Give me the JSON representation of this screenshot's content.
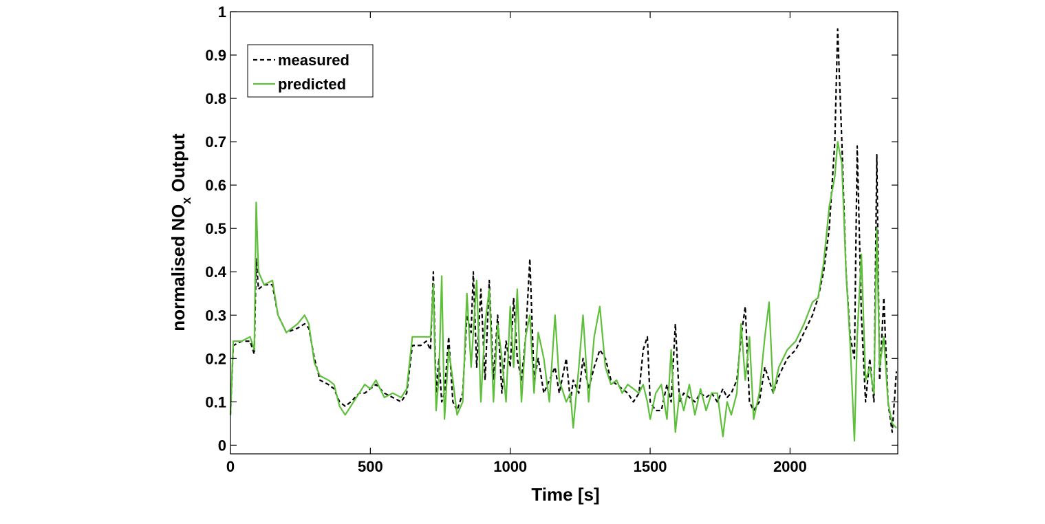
{
  "chart_data": {
    "type": "line",
    "xlabel": "Time [s]",
    "ylabel": {
      "text": "normalised NO",
      "subscript": "x",
      "suffix": " Output"
    },
    "xlim": [
      0,
      2385
    ],
    "ylim": [
      -0.02,
      1
    ],
    "xticks": [
      0,
      500,
      1000,
      1500,
      2000
    ],
    "yticks": [
      0,
      0.1,
      0.2,
      0.3,
      0.4,
      0.5,
      0.6,
      0.7,
      0.8,
      0.9,
      1
    ],
    "legend": "upper left",
    "grid": false,
    "x": [
      0,
      10,
      40,
      70,
      85,
      92,
      100,
      120,
      150,
      170,
      200,
      240,
      265,
      280,
      300,
      320,
      350,
      370,
      390,
      410,
      430,
      460,
      480,
      500,
      520,
      550,
      580,
      610,
      630,
      650,
      680,
      700,
      715,
      725,
      735,
      745,
      755,
      765,
      780,
      795,
      810,
      830,
      845,
      860,
      868,
      880,
      895,
      910,
      925,
      940,
      955,
      970,
      985,
      1000,
      1012,
      1025,
      1040,
      1055,
      1070,
      1085,
      1100,
      1120,
      1140,
      1160,
      1175,
      1200,
      1215,
      1225,
      1245,
      1260,
      1280,
      1300,
      1320,
      1340,
      1360,
      1380,
      1400,
      1420,
      1440,
      1460,
      1475,
      1490,
      1500,
      1520,
      1540,
      1560,
      1575,
      1590,
      1605,
      1620,
      1640,
      1660,
      1680,
      1700,
      1720,
      1740,
      1760,
      1775,
      1790,
      1810,
      1825,
      1840,
      1855,
      1870,
      1890,
      1910,
      1925,
      1940,
      1960,
      1990,
      2020,
      2050,
      2080,
      2100,
      2120,
      2140,
      2160,
      2170,
      2185,
      2200,
      2215,
      2230,
      2240,
      2255,
      2270,
      2285,
      2300,
      2310,
      2320,
      2335,
      2350,
      2365,
      2380
    ],
    "series": [
      {
        "name": "measured",
        "color": "#000000",
        "dash": true,
        "values": [
          0.07,
          0.23,
          0.24,
          0.24,
          0.21,
          0.43,
          0.36,
          0.37,
          0.37,
          0.3,
          0.26,
          0.27,
          0.28,
          0.27,
          0.2,
          0.15,
          0.14,
          0.13,
          0.1,
          0.09,
          0.1,
          0.12,
          0.12,
          0.13,
          0.14,
          0.12,
          0.11,
          0.1,
          0.12,
          0.23,
          0.23,
          0.24,
          0.22,
          0.4,
          0.12,
          0.2,
          0.1,
          0.12,
          0.25,
          0.1,
          0.08,
          0.12,
          0.3,
          0.26,
          0.4,
          0.18,
          0.36,
          0.15,
          0.38,
          0.15,
          0.3,
          0.12,
          0.24,
          0.18,
          0.34,
          0.2,
          0.15,
          0.25,
          0.43,
          0.15,
          0.2,
          0.12,
          0.15,
          0.18,
          0.12,
          0.2,
          0.1,
          0.15,
          0.12,
          0.2,
          0.13,
          0.18,
          0.22,
          0.2,
          0.15,
          0.14,
          0.13,
          0.12,
          0.1,
          0.12,
          0.22,
          0.25,
          0.1,
          0.08,
          0.08,
          0.14,
          0.1,
          0.28,
          0.1,
          0.12,
          0.11,
          0.1,
          0.12,
          0.11,
          0.12,
          0.1,
          0.13,
          0.11,
          0.12,
          0.15,
          0.25,
          0.32,
          0.1,
          0.08,
          0.1,
          0.18,
          0.15,
          0.12,
          0.16,
          0.2,
          0.22,
          0.26,
          0.3,
          0.34,
          0.4,
          0.5,
          0.7,
          0.96,
          0.7,
          0.4,
          0.25,
          0.2,
          0.69,
          0.3,
          0.1,
          0.2,
          0.1,
          0.67,
          0.15,
          0.34,
          0.1,
          0.03,
          0.17
        ]
      },
      {
        "name": "predicted",
        "color": "#5dbf3a",
        "dash": false,
        "values": [
          0.07,
          0.24,
          0.24,
          0.25,
          0.22,
          0.56,
          0.4,
          0.37,
          0.38,
          0.3,
          0.26,
          0.28,
          0.3,
          0.28,
          0.19,
          0.16,
          0.15,
          0.14,
          0.09,
          0.07,
          0.09,
          0.12,
          0.14,
          0.13,
          0.15,
          0.11,
          0.12,
          0.11,
          0.13,
          0.25,
          0.25,
          0.25,
          0.25,
          0.37,
          0.08,
          0.16,
          0.39,
          0.06,
          0.22,
          0.15,
          0.07,
          0.1,
          0.35,
          0.18,
          0.26,
          0.38,
          0.1,
          0.28,
          0.36,
          0.1,
          0.28,
          0.2,
          0.1,
          0.32,
          0.18,
          0.36,
          0.1,
          0.25,
          0.3,
          0.12,
          0.26,
          0.2,
          0.1,
          0.3,
          0.15,
          0.1,
          0.12,
          0.04,
          0.18,
          0.3,
          0.1,
          0.25,
          0.32,
          0.18,
          0.14,
          0.15,
          0.12,
          0.14,
          0.13,
          0.12,
          0.14,
          0.1,
          0.06,
          0.12,
          0.14,
          0.06,
          0.22,
          0.03,
          0.12,
          0.08,
          0.14,
          0.07,
          0.13,
          0.08,
          0.12,
          0.12,
          0.02,
          0.1,
          0.07,
          0.12,
          0.28,
          0.15,
          0.25,
          0.06,
          0.12,
          0.25,
          0.33,
          0.12,
          0.18,
          0.22,
          0.24,
          0.28,
          0.33,
          0.34,
          0.42,
          0.55,
          0.62,
          0.7,
          0.65,
          0.4,
          0.23,
          0.01,
          0.25,
          0.44,
          0.15,
          0.18,
          0.12,
          0.5,
          0.18,
          0.25,
          0.1,
          0.05,
          0.04
        ]
      }
    ]
  }
}
